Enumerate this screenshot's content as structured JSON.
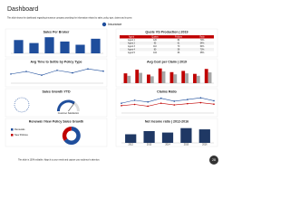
{
  "header": {
    "title": "Dashboard",
    "subtitle": "This slide shows the dashboard regarding insurance company providing the information related to sales, policy type, claims and income."
  },
  "legend": "Insurance",
  "footer": "This slide is 100% editable. Adapt it to your needs and capture your audience's attention.",
  "page_number": "28",
  "chart_data": [
    {
      "type": "bar",
      "title": "Sales Per Broker",
      "categories": [
        null,
        null,
        null,
        null,
        null,
        null
      ],
      "values": [
        62,
        48,
        75,
        55,
        40,
        68
      ],
      "color": "#1f4e9c",
      "ylim": [
        0,
        80
      ]
    },
    {
      "type": "table",
      "title": "Quote VS Production | 2019",
      "columns": [
        "Agent",
        "Quotes",
        "Policies",
        "Ratio"
      ],
      "rows": [
        [
          "Agent 1",
          "120",
          "84",
          "70%"
        ],
        [
          "Agent 2",
          "95",
          "61",
          "64%"
        ],
        [
          "Agent 3",
          "110",
          "70",
          "64%"
        ],
        [
          "Agent 4",
          "80",
          "58",
          "73%"
        ],
        [
          "Agent 5",
          "102",
          "66",
          "65%"
        ]
      ],
      "color": "#c00000"
    },
    {
      "type": "line",
      "title": "Avg Time to Settle by Policy Type",
      "categories": [
        null,
        null,
        null,
        null,
        null,
        null,
        null
      ],
      "values": [
        3.2,
        4.1,
        2.8,
        4.5,
        3.6,
        5.0,
        4.2
      ],
      "color": "#1f4e9c",
      "ylim": [
        0,
        6
      ]
    },
    {
      "type": "bar",
      "title": "Avg Cost per Claim | 2019",
      "categories": [
        null,
        null,
        null,
        null,
        null,
        null,
        null,
        null
      ],
      "series": [
        {
          "color": "#c00000",
          "values": [
            40,
            55,
            35,
            60,
            45,
            50,
            38,
            58
          ]
        },
        {
          "color": "#a6a6a6",
          "values": [
            30,
            42,
            28,
            48,
            36,
            40,
            30,
            44
          ]
        }
      ],
      "ylim": [
        0,
        70
      ]
    },
    {
      "type": "gauge",
      "title": "Sales Growth YTD",
      "value": 70,
      "lim": [
        0,
        100
      ],
      "label": "Customer Satisfaction",
      "color": "#1f4e9c"
    },
    {
      "type": "line",
      "title": "Claims Ratio",
      "categories": [
        null,
        null,
        null,
        null,
        null,
        null,
        null,
        null
      ],
      "series": [
        {
          "color": "#1f4e9c",
          "values": [
            40,
            52,
            45,
            60,
            48,
            55,
            62,
            50
          ]
        },
        {
          "color": "#c00000",
          "values": [
            30,
            35,
            28,
            40,
            33,
            38,
            42,
            36
          ]
        }
      ],
      "ylim": [
        0,
        70
      ]
    },
    {
      "type": "pie",
      "title": "Renewal / New Policy Sales Growth",
      "categories": [
        "Renewals",
        "New Policies"
      ],
      "values": [
        65,
        35
      ],
      "colors": [
        "#1f4e9c",
        "#c00000"
      ]
    },
    {
      "type": "bar",
      "title": "Net Income ratio | 2012-2016",
      "categories": [
        "2012",
        "2013",
        "2014",
        "2015",
        "2016"
      ],
      "values": [
        35,
        48,
        42,
        60,
        55
      ],
      "color": "#1f3864",
      "ylim": [
        0,
        70
      ]
    }
  ]
}
